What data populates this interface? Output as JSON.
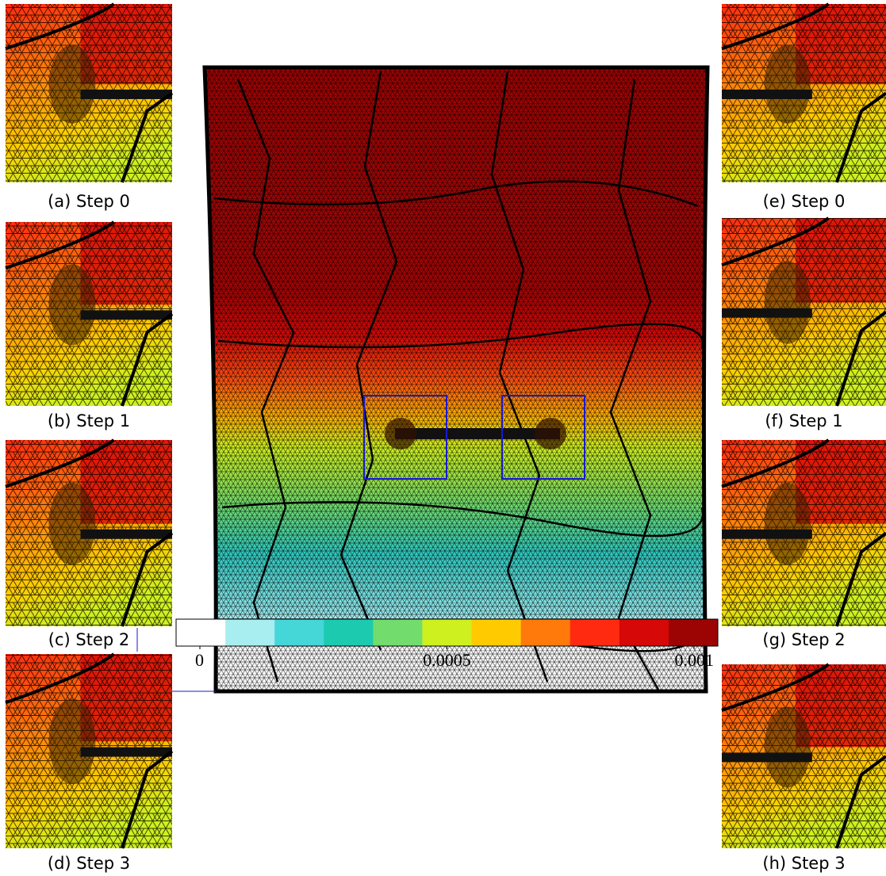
{
  "panels": [
    {
      "caption": "(a) Step 0"
    },
    {
      "caption": "(b) Step 1"
    },
    {
      "caption": "(c) Step 2"
    },
    {
      "caption": "(d) Step 3"
    },
    {
      "caption": "(e) Step 0"
    },
    {
      "caption": "(f) Step 1"
    },
    {
      "caption": "(g) Step 2"
    },
    {
      "caption": "(h) Step 3"
    }
  ],
  "colorbar": {
    "range": [
      0,
      0.001
    ],
    "ticks": [
      0,
      0.0005,
      0.001
    ],
    "colors": [
      "#ffffff",
      "#a8eef0",
      "#45d6d8",
      "#1ccab0",
      "#72dc6c",
      "#cdf01e",
      "#ffcb00",
      "#ff7a0a",
      "#ff2a10",
      "#d70808",
      "#9c0404"
    ]
  }
}
